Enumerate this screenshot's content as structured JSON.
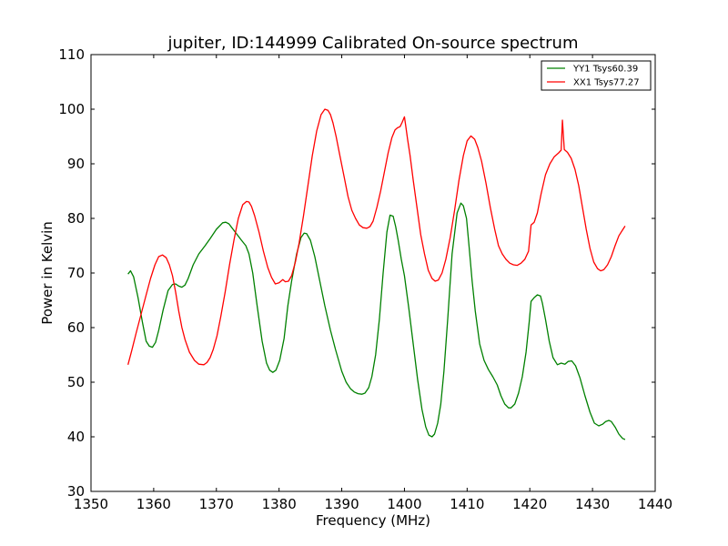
{
  "chart_data": {
    "type": "line",
    "title": "jupiter, ID:144999 Calibrated On-source spectrum",
    "xlabel": "Frequency (MHz)",
    "ylabel": "Power in Kelvin",
    "xlim": [
      1350,
      1440
    ],
    "ylim": [
      30,
      110
    ],
    "xticks": [
      1350,
      1360,
      1370,
      1380,
      1390,
      1400,
      1410,
      1420,
      1430,
      1440
    ],
    "yticks": [
      30,
      40,
      50,
      60,
      70,
      80,
      90,
      100,
      110
    ],
    "xtick_labels": [
      "1350",
      "1360",
      "1370",
      "1380",
      "1390",
      "1400",
      "1410",
      "1420",
      "1430",
      "1440"
    ],
    "ytick_labels": [
      "30",
      "40",
      "50",
      "60",
      "70",
      "80",
      "90",
      "100",
      "110"
    ],
    "grid": false,
    "legend": "top-right",
    "series": [
      {
        "name": "YY1 Tsys60.39",
        "color": "#008000",
        "x": [
          1355.9,
          1356.3,
          1356.8,
          1357.5,
          1358.2,
          1358.8,
          1359.3,
          1359.8,
          1360.3,
          1360.8,
          1361.5,
          1362.3,
          1363.0,
          1363.5,
          1364.0,
          1364.5,
          1365.0,
          1365.5,
          1366.3,
          1367.2,
          1368.2,
          1369.0,
          1370.0,
          1371.0,
          1371.5,
          1372.0,
          1373.0,
          1374.0,
          1374.7,
          1375.2,
          1375.8,
          1376.5,
          1377.3,
          1378.0,
          1378.5,
          1379.0,
          1379.5,
          1380.1,
          1380.8,
          1381.4,
          1382.0,
          1382.8,
          1383.5,
          1384.0,
          1384.4,
          1385.0,
          1385.7,
          1386.5,
          1387.3,
          1388.2,
          1389.0,
          1390.0,
          1390.7,
          1391.4,
          1392.0,
          1392.6,
          1393.2,
          1393.7,
          1394.3,
          1394.8,
          1395.4,
          1396.0,
          1396.6,
          1397.2,
          1397.7,
          1398.2,
          1398.6,
          1399.0,
          1399.5,
          1400.0,
          1400.7,
          1401.4,
          1402.1,
          1402.8,
          1403.4,
          1403.9,
          1404.4,
          1404.8,
          1405.3,
          1405.8,
          1406.3,
          1406.9,
          1407.6,
          1408.4,
          1409.0,
          1409.4,
          1409.9,
          1410.3,
          1410.8,
          1411.3,
          1412.0,
          1412.7,
          1413.4,
          1414.1,
          1414.8,
          1415.4,
          1416.0,
          1416.6,
          1417.0,
          1417.6,
          1418.2,
          1418.8,
          1419.4,
          1419.9,
          1420.2,
          1420.7,
          1421.2,
          1421.7,
          1422.0,
          1422.5,
          1423.1,
          1423.7,
          1424.4,
          1425.0,
          1425.6,
          1426.1,
          1426.7,
          1427.3,
          1428.0,
          1428.8,
          1429.6,
          1430.3,
          1431.0,
          1431.6,
          1432.1,
          1432.6,
          1433.0,
          1433.6,
          1434.2,
          1434.8,
          1435.2
        ],
        "values": [
          69.8,
          70.4,
          69.3,
          65.5,
          61.0,
          57.5,
          56.6,
          56.4,
          57.3,
          59.5,
          63.2,
          66.8,
          67.9,
          68.0,
          67.6,
          67.4,
          67.8,
          69.0,
          71.5,
          73.5,
          75.0,
          76.3,
          78.0,
          79.2,
          79.3,
          79.0,
          77.5,
          76.0,
          75.0,
          73.5,
          70.0,
          64.0,
          57.5,
          53.5,
          52.2,
          51.8,
          52.2,
          54.0,
          58.0,
          64.0,
          68.5,
          73.5,
          76.5,
          77.3,
          77.2,
          76.0,
          73.0,
          68.5,
          64.0,
          59.5,
          56.0,
          52.0,
          50.0,
          48.8,
          48.2,
          47.9,
          47.8,
          48.0,
          49.0,
          51.0,
          55.0,
          61.5,
          70.0,
          77.5,
          80.6,
          80.4,
          78.5,
          76.0,
          72.5,
          69.5,
          63.5,
          57.0,
          50.5,
          45.0,
          41.8,
          40.3,
          40.0,
          40.5,
          42.5,
          46.0,
          52.0,
          61.5,
          73.5,
          81.0,
          82.8,
          82.3,
          80.0,
          75.0,
          68.5,
          63.0,
          57.0,
          54.0,
          52.3,
          51.0,
          49.5,
          47.5,
          46.0,
          45.3,
          45.3,
          46.0,
          48.0,
          51.0,
          55.5,
          61.0,
          64.8,
          65.5,
          66.0,
          65.8,
          64.5,
          61.5,
          57.5,
          54.5,
          53.2,
          53.5,
          53.3,
          53.8,
          53.9,
          53.0,
          50.8,
          47.5,
          44.5,
          42.5,
          42.0,
          42.3,
          42.8,
          43.0,
          42.8,
          41.8,
          40.5,
          39.7,
          39.5
        ]
      },
      {
        "name": "XX1 Tsys77.27",
        "color": "#ff0000",
        "x": [
          1355.9,
          1356.5,
          1357.2,
          1358.0,
          1358.8,
          1359.5,
          1360.2,
          1360.8,
          1361.4,
          1362.0,
          1362.5,
          1363.0,
          1363.5,
          1364.0,
          1364.5,
          1365.0,
          1365.7,
          1366.5,
          1367.2,
          1368.0,
          1368.5,
          1369.0,
          1369.5,
          1370.1,
          1370.7,
          1371.4,
          1372.1,
          1372.8,
          1373.5,
          1374.2,
          1374.8,
          1375.2,
          1375.6,
          1376.1,
          1376.8,
          1377.5,
          1378.2,
          1378.8,
          1379.4,
          1380.0,
          1380.6,
          1381.0,
          1381.5,
          1382.0,
          1382.6,
          1383.2,
          1383.9,
          1384.6,
          1385.3,
          1386.0,
          1386.7,
          1387.3,
          1387.8,
          1388.2,
          1388.6,
          1389.1,
          1389.7,
          1390.4,
          1391.0,
          1391.6,
          1392.2,
          1392.8,
          1393.4,
          1394.0,
          1394.5,
          1395.0,
          1395.6,
          1396.2,
          1396.8,
          1397.4,
          1398.0,
          1398.5,
          1398.9,
          1399.3,
          1399.6,
          1400.0,
          1400.2,
          1400.5,
          1400.9,
          1401.4,
          1402.0,
          1402.6,
          1403.2,
          1403.8,
          1404.4,
          1404.9,
          1405.4,
          1406.0,
          1406.6,
          1407.3,
          1408.0,
          1408.7,
          1409.4,
          1410.0,
          1410.6,
          1411.2,
          1411.7,
          1412.3,
          1413.0,
          1413.7,
          1414.4,
          1415.0,
          1415.6,
          1416.2,
          1416.8,
          1417.4,
          1418.0,
          1418.6,
          1419.2,
          1419.8,
          1420.2,
          1420.7,
          1421.2,
          1421.8,
          1422.5,
          1423.2,
          1423.9,
          1424.6,
          1425.0,
          1425.2,
          1425.5,
          1426.0,
          1426.6,
          1427.2,
          1427.8,
          1428.4,
          1429.0,
          1429.6,
          1430.2,
          1430.8,
          1431.3,
          1431.8,
          1432.4,
          1433.0,
          1433.6,
          1434.2,
          1434.8,
          1435.2
        ],
        "values": [
          53.2,
          55.8,
          59.0,
          62.5,
          66.0,
          69.0,
          71.5,
          73.0,
          73.3,
          72.8,
          71.5,
          69.5,
          66.5,
          63.0,
          60.0,
          57.8,
          55.5,
          54.0,
          53.3,
          53.2,
          53.6,
          54.5,
          56.0,
          58.5,
          62.0,
          66.5,
          71.5,
          76.0,
          80.0,
          82.5,
          83.1,
          83.0,
          82.2,
          80.5,
          77.5,
          74.0,
          71.0,
          69.2,
          68.0,
          68.2,
          68.8,
          68.4,
          68.5,
          69.5,
          72.0,
          75.5,
          80.5,
          86.0,
          91.5,
          96.0,
          99.0,
          100.0,
          99.8,
          99.0,
          97.5,
          95.0,
          91.5,
          87.5,
          84.0,
          81.5,
          80.0,
          78.8,
          78.3,
          78.2,
          78.5,
          79.5,
          82.0,
          85.0,
          88.5,
          92.0,
          94.8,
          96.2,
          96.6,
          96.8,
          97.5,
          98.6,
          97.0,
          94.5,
          91.5,
          87.0,
          82.0,
          77.0,
          73.5,
          70.5,
          69.0,
          68.5,
          68.7,
          70.0,
          72.5,
          76.5,
          81.5,
          87.0,
          91.5,
          94.2,
          95.1,
          94.5,
          93.0,
          90.5,
          86.5,
          82.0,
          78.0,
          75.0,
          73.5,
          72.5,
          71.8,
          71.5,
          71.4,
          71.8,
          72.5,
          74.0,
          78.8,
          79.3,
          81.0,
          84.5,
          88.0,
          90.0,
          91.3,
          92.0,
          92.5,
          98.0,
          92.6,
          92.1,
          91.0,
          89.0,
          86.0,
          82.0,
          78.0,
          74.5,
          72.0,
          70.8,
          70.4,
          70.6,
          71.5,
          73.0,
          75.0,
          76.8,
          77.9,
          78.6
        ]
      }
    ]
  }
}
